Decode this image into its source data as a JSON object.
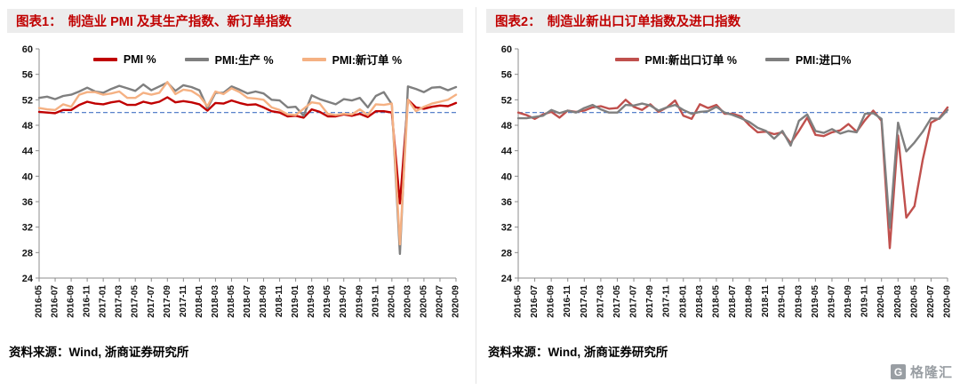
{
  "panels": [
    {
      "label": "图表1：",
      "title": "制造业 PMI 及其生产指数、新订单指数",
      "source": "资料来源：Wind, 浙商证券研究所"
    },
    {
      "label": "图表2：",
      "title": "制造业新出口订单指数及进口指数",
      "source": "资料来源：Wind, 浙商证券研究所"
    }
  ],
  "logo": {
    "mark": "G",
    "text": "格隆汇"
  },
  "colors": {
    "title_red": "#c00000",
    "header_bg": "#ececec",
    "ref_line_blue": "#4472c4",
    "axis_gray": "#8c8c8c"
  },
  "chart_data": [
    {
      "type": "line",
      "title": "制造业 PMI 及其生产指数、新订单指数",
      "xlabel": "",
      "ylabel": "",
      "ylim": [
        24,
        60
      ],
      "yticks": [
        24,
        28,
        32,
        36,
        40,
        44,
        48,
        52,
        56,
        60
      ],
      "reference_line": 50,
      "grid": false,
      "legend_position": "top-center-inside",
      "x": [
        "2016-05",
        "2016-06",
        "2016-07",
        "2016-08",
        "2016-09",
        "2016-10",
        "2016-11",
        "2016-12",
        "2017-01",
        "2017-02",
        "2017-03",
        "2017-04",
        "2017-05",
        "2017-06",
        "2017-07",
        "2017-08",
        "2017-09",
        "2017-10",
        "2017-11",
        "2017-12",
        "2018-01",
        "2018-02",
        "2018-03",
        "2018-04",
        "2018-05",
        "2018-06",
        "2018-07",
        "2018-08",
        "2018-09",
        "2018-10",
        "2018-11",
        "2018-12",
        "2019-01",
        "2019-02",
        "2019-03",
        "2019-04",
        "2019-05",
        "2019-06",
        "2019-07",
        "2019-08",
        "2019-09",
        "2019-10",
        "2019-11",
        "2019-12",
        "2020-01",
        "2020-02",
        "2020-03",
        "2020-04",
        "2020-05",
        "2020-06",
        "2020-07",
        "2020-08",
        "2020-09"
      ],
      "x_tick_step": 2,
      "x_tick_labels": [
        "2016-05",
        "2016-07",
        "2016-09",
        "2016-11",
        "2017-01",
        "2017-03",
        "2017-05",
        "2017-07",
        "2017-09",
        "2017-11",
        "2018-01",
        "2018-03",
        "2018-05",
        "2018-07",
        "2018-09",
        "2018-11",
        "2019-01",
        "2019-03",
        "2019-05",
        "2019-07",
        "2019-09",
        "2019-11",
        "2020-01",
        "2020-03",
        "2020-05",
        "2020-07",
        "2020-09"
      ],
      "series": [
        {
          "name": "PMI %",
          "color": "#c00000",
          "width": 2.4,
          "values": [
            50.1,
            50.0,
            49.9,
            50.4,
            50.4,
            51.2,
            51.7,
            51.4,
            51.3,
            51.6,
            51.8,
            51.2,
            51.2,
            51.7,
            51.4,
            51.7,
            52.4,
            51.6,
            51.8,
            51.6,
            51.3,
            50.3,
            51.5,
            51.4,
            51.9,
            51.5,
            51.2,
            51.3,
            50.8,
            50.2,
            50.0,
            49.4,
            49.5,
            49.2,
            50.5,
            50.1,
            49.4,
            49.4,
            49.7,
            49.5,
            49.8,
            49.3,
            50.2,
            50.2,
            50.0,
            35.7,
            52.0,
            50.8,
            50.6,
            50.9,
            51.1,
            51.0,
            51.5
          ]
        },
        {
          "name": "PMI:生产 %",
          "color": "#7f7f7f",
          "width": 2.4,
          "values": [
            52.3,
            52.5,
            52.1,
            52.6,
            52.8,
            53.3,
            53.9,
            53.3,
            53.1,
            53.7,
            54.2,
            53.8,
            53.4,
            54.4,
            53.5,
            54.1,
            54.7,
            53.4,
            54.3,
            54.0,
            53.5,
            50.7,
            53.1,
            53.1,
            54.1,
            53.6,
            53.0,
            53.3,
            53.0,
            52.0,
            51.9,
            50.8,
            50.9,
            49.5,
            52.7,
            52.1,
            51.7,
            51.3,
            52.1,
            51.9,
            52.3,
            50.8,
            52.6,
            53.2,
            51.3,
            27.8,
            54.1,
            53.7,
            53.2,
            53.9,
            54.0,
            53.5,
            54.0
          ]
        },
        {
          "name": "PMI:新订单 %",
          "color": "#f5b183",
          "width": 2.4,
          "values": [
            50.7,
            50.5,
            50.4,
            51.3,
            50.9,
            52.8,
            53.2,
            53.2,
            52.8,
            53.0,
            53.3,
            52.3,
            52.3,
            53.1,
            52.8,
            53.1,
            54.8,
            52.9,
            53.6,
            53.4,
            52.6,
            51.0,
            53.3,
            52.9,
            53.8,
            53.2,
            52.3,
            52.2,
            52.0,
            50.8,
            50.4,
            49.7,
            49.6,
            50.6,
            51.6,
            51.4,
            49.8,
            49.6,
            49.8,
            49.7,
            50.5,
            49.6,
            51.3,
            51.2,
            51.4,
            29.3,
            52.0,
            50.2,
            50.9,
            51.4,
            51.7,
            52.0,
            52.8
          ]
        }
      ]
    },
    {
      "type": "line",
      "title": "制造业新出口订单指数及进口指数",
      "xlabel": "",
      "ylabel": "",
      "ylim": [
        24,
        60
      ],
      "yticks": [
        24,
        28,
        32,
        36,
        40,
        44,
        48,
        52,
        56,
        60
      ],
      "reference_line": 50,
      "grid": false,
      "legend_position": "top-center-inside",
      "x": [
        "2016-05",
        "2016-06",
        "2016-07",
        "2016-08",
        "2016-09",
        "2016-10",
        "2016-11",
        "2016-12",
        "2017-01",
        "2017-02",
        "2017-03",
        "2017-04",
        "2017-05",
        "2017-06",
        "2017-07",
        "2017-08",
        "2017-09",
        "2017-10",
        "2017-11",
        "2017-12",
        "2018-01",
        "2018-02",
        "2018-03",
        "2018-04",
        "2018-05",
        "2018-06",
        "2018-07",
        "2018-08",
        "2018-09",
        "2018-10",
        "2018-11",
        "2018-12",
        "2019-01",
        "2019-02",
        "2019-03",
        "2019-04",
        "2019-05",
        "2019-06",
        "2019-07",
        "2019-08",
        "2019-09",
        "2019-10",
        "2019-11",
        "2019-12",
        "2020-01",
        "2020-02",
        "2020-03",
        "2020-04",
        "2020-05",
        "2020-06",
        "2020-07",
        "2020-08",
        "2020-09"
      ],
      "x_tick_step": 2,
      "x_tick_labels": [
        "2016-05",
        "2016-07",
        "2016-09",
        "2016-11",
        "2017-01",
        "2017-03",
        "2017-05",
        "2017-07",
        "2017-09",
        "2017-11",
        "2018-01",
        "2018-03",
        "2018-05",
        "2018-07",
        "2018-09",
        "2018-11",
        "2019-01",
        "2019-03",
        "2019-05",
        "2019-07",
        "2019-09",
        "2019-11",
        "2020-01",
        "2020-03",
        "2020-05",
        "2020-07",
        "2020-09"
      ],
      "series": [
        {
          "name": "PMI:新出口订单 %",
          "color": "#c0504d",
          "width": 2.4,
          "values": [
            50.0,
            49.6,
            49.0,
            49.7,
            50.1,
            49.2,
            50.3,
            50.1,
            50.3,
            50.8,
            51.0,
            50.6,
            50.7,
            52.0,
            50.9,
            50.4,
            51.3,
            50.1,
            50.8,
            51.9,
            49.5,
            49.0,
            51.3,
            50.7,
            51.2,
            49.8,
            49.8,
            49.4,
            48.0,
            46.9,
            47.0,
            46.6,
            46.9,
            45.2,
            47.1,
            49.2,
            46.5,
            46.3,
            46.9,
            47.2,
            48.2,
            47.0,
            48.8,
            50.3,
            48.7,
            28.7,
            46.4,
            33.5,
            35.3,
            42.6,
            48.4,
            49.1,
            50.8
          ]
        },
        {
          "name": "PMI:进口%",
          "color": "#7f7f7f",
          "width": 2.4,
          "values": [
            49.1,
            49.1,
            49.3,
            49.5,
            50.4,
            49.9,
            50.3,
            50.0,
            50.7,
            51.2,
            50.5,
            50.0,
            50.0,
            51.2,
            51.1,
            51.4,
            51.1,
            50.3,
            50.8,
            51.2,
            50.4,
            49.8,
            50.1,
            50.2,
            50.9,
            50.0,
            49.6,
            49.1,
            48.5,
            47.6,
            47.1,
            45.9,
            47.1,
            44.8,
            48.7,
            49.7,
            47.1,
            46.8,
            47.4,
            46.7,
            47.1,
            46.9,
            49.8,
            49.9,
            49.0,
            31.9,
            48.4,
            43.9,
            45.3,
            47.0,
            49.1,
            49.0,
            50.4
          ]
        }
      ]
    }
  ]
}
